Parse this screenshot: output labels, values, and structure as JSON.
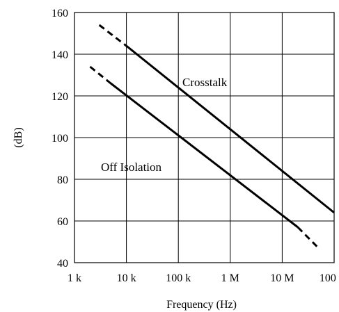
{
  "chart_data": {
    "type": "line",
    "title": "",
    "xlabel": "Frequency (Hz)",
    "ylabel": "(dB)",
    "xscale": "log",
    "xlim": [
      1000,
      100000000
    ],
    "ylim": [
      40,
      160
    ],
    "x_tick_values": [
      1000,
      10000,
      100000,
      1000000,
      10000000,
      100000000
    ],
    "x_tick_labels": [
      "1 k",
      "10 k",
      "100 k",
      "1 M",
      "10 M",
      "100 M"
    ],
    "y_tick_values": [
      40,
      60,
      80,
      100,
      120,
      140,
      160
    ],
    "y_tick_labels": [
      "40",
      "60",
      "80",
      "100",
      "120",
      "140",
      "160"
    ],
    "grid": true,
    "series": [
      {
        "name": "Crosstalk",
        "color": "#000000",
        "dashed_segment": {
          "x": [
            3000,
            10000
          ],
          "y": [
            154,
            144
          ]
        },
        "solid_segment": {
          "x": [
            10000,
            100000000
          ],
          "y": [
            144,
            64
          ]
        }
      },
      {
        "name": "Off Isolation",
        "color": "#000000",
        "dashed_segment_start": {
          "x": [
            2000,
            5000
          ],
          "y": [
            134,
            126
          ]
        },
        "solid_segment": {
          "x": [
            5000,
            20000000
          ],
          "y": [
            126,
            57
          ]
        },
        "dashed_segment_end": {
          "x": [
            20000000,
            50000000
          ],
          "y": [
            57,
            47
          ]
        }
      }
    ]
  }
}
